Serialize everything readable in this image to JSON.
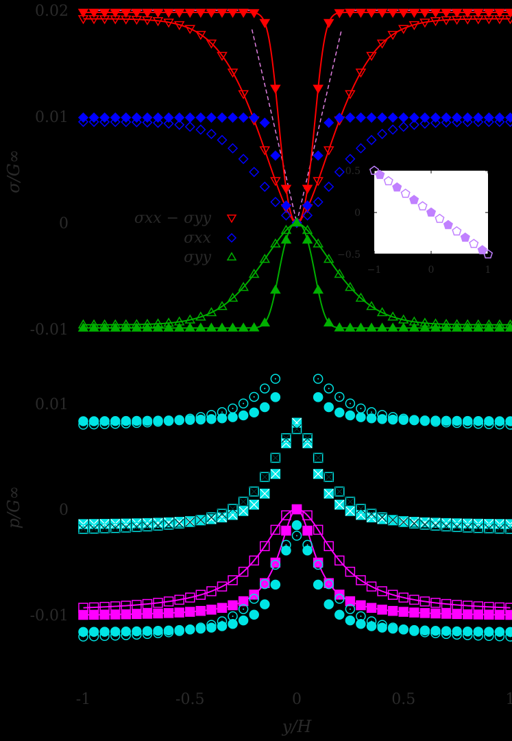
{
  "colors": {
    "background": "#000000",
    "text": "#2a2a2a",
    "red": "#ff0000",
    "blue": "#0000ff",
    "green": "#00b000",
    "cyan": "#00e5e5",
    "magenta": "#ff00ff",
    "violet": "#c080ff",
    "dash": "#e080e0"
  },
  "chart_data": [
    {
      "type": "line",
      "title": "",
      "panel": "top",
      "xlabel": "y/H",
      "ylabel": "σ/G∞",
      "xlim": [
        -1,
        1
      ],
      "ylim": [
        -0.0105,
        0.0205
      ],
      "yticks": [
        "0.02",
        "0.01",
        "0",
        "-0.01"
      ],
      "ytick_values": [
        0.02,
        0.01,
        0,
        -0.01
      ],
      "grid": false,
      "legend": {
        "position": "center-left",
        "entries": [
          {
            "label": "σxx − σyy",
            "marker": "triangle-down-open",
            "color": "#ff0000"
          },
          {
            "label": "σxx",
            "marker": "diamond-open",
            "color": "#0000ff"
          },
          {
            "label": "σyy",
            "marker": "triangle-up-open",
            "color": "#00b000"
          }
        ]
      },
      "series": [
        {
          "name": "σxx − σyy (filled)",
          "color": "#ff0000",
          "marker": "triangle-down-filled",
          "line": true,
          "shape": "plateau",
          "amplitude": 0.0198,
          "width": 0.09
        },
        {
          "name": "σxx − σyy (open)",
          "color": "#ff0000",
          "marker": "triangle-down-open",
          "line": true,
          "shape": "gradual",
          "amplitude": 0.0192,
          "width": 0.25
        },
        {
          "name": "σxx (filled)",
          "color": "#0000ff",
          "marker": "diamond-filled",
          "line": false,
          "shape": "plateau",
          "amplitude": 0.0099,
          "width": 0.09
        },
        {
          "name": "σxx (open)",
          "color": "#0000ff",
          "marker": "diamond-open",
          "line": false,
          "shape": "gradual",
          "amplitude": 0.0095,
          "width": 0.25
        },
        {
          "name": "σyy (filled)",
          "color": "#00b000",
          "marker": "triangle-up-filled",
          "line": true,
          "shape": "plateau",
          "amplitude": -0.0099,
          "width": 0.09
        },
        {
          "name": "σyy (open)",
          "color": "#00b000",
          "marker": "triangle-up-open",
          "line": true,
          "shape": "gradual",
          "amplitude": -0.0096,
          "width": 0.25
        },
        {
          "name": "analytic",
          "color": "#e080e0",
          "style": "dashed",
          "line": true,
          "shape": "step",
          "amplitude": 0.02,
          "width": 0.2
        }
      ]
    },
    {
      "type": "scatter",
      "panel": "bottom",
      "xlabel": "y/H",
      "ylabel": "p/G∞",
      "xlim": [
        -1,
        1
      ],
      "ylim": [
        -0.0135,
        0.0135
      ],
      "yticks": [
        "0.01",
        "0",
        "-0.01"
      ],
      "ytick_values": [
        0.01,
        0,
        -0.01
      ],
      "xticks": [
        "-1",
        "-0.5",
        "0",
        "0.5",
        "1"
      ],
      "xtick_values": [
        -1,
        -0.5,
        0,
        0.5,
        1
      ],
      "grid": false,
      "series": [
        {
          "name": "cyan filled circle (upper)",
          "color": "#00e5e5",
          "marker": "circle-filled",
          "base": 0.0083,
          "peak": 0.0135,
          "width": 0.09
        },
        {
          "name": "cyan open circle (upper)",
          "color": "#00e5e5",
          "marker": "circle-open",
          "base": 0.0078,
          "peak": 0.0135,
          "width": 0.2
        },
        {
          "name": "cyan filled x (middle)",
          "color": "#00e5e5",
          "marker": "x-square-filled",
          "base": -0.0015,
          "peak": 0.0082,
          "width": 0.1
        },
        {
          "name": "cyan open x (middle)",
          "color": "#00e5e5",
          "marker": "x-square-open",
          "base": -0.0021,
          "peak": 0.0076,
          "width": 0.16
        },
        {
          "name": "magenta filled square",
          "color": "#ff00ff",
          "marker": "square-filled",
          "base": -0.0101,
          "peak": 0.0,
          "width": 0.1,
          "line": true
        },
        {
          "name": "magenta open square",
          "color": "#ff00ff",
          "marker": "square-open",
          "base": -0.0097,
          "peak": 0.0,
          "width": 0.2,
          "line": true
        },
        {
          "name": "cyan filled circle (lower)",
          "color": "#00e5e5",
          "marker": "circle-filled",
          "base": -0.0117,
          "peak": -0.0015,
          "width": 0.09
        },
        {
          "name": "cyan open circle (lower)",
          "color": "#00e5e5",
          "marker": "circle-open",
          "base": -0.0123,
          "peak": -0.0025,
          "width": 0.16
        }
      ]
    },
    {
      "type": "scatter",
      "panel": "inset",
      "xlim": [
        -1,
        1
      ],
      "ylim": [
        -0.5,
        0.5
      ],
      "xticks": [
        "−1",
        "0",
        "1"
      ],
      "xtick_values": [
        -1,
        0,
        1
      ],
      "yticks": [
        "0.5",
        "0",
        "−0.5"
      ],
      "ytick_values": [
        0.5,
        0,
        -0.5
      ],
      "background": "#ffffff",
      "series": [
        {
          "name": "violet filled pentagon",
          "color": "#c080ff",
          "marker": "pentagon-filled",
          "x": [
            -0.9,
            -0.6,
            -0.3,
            0.0,
            0.3,
            0.6,
            0.9
          ],
          "y": [
            0.45,
            0.3,
            0.15,
            0.0,
            -0.15,
            -0.3,
            -0.45
          ]
        },
        {
          "name": "violet open pentagon",
          "color": "#c080ff",
          "marker": "pentagon-open",
          "x": [
            -1.0,
            -0.75,
            -0.45,
            -0.15,
            0.15,
            0.45,
            0.75,
            1.0
          ],
          "y": [
            0.5,
            0.375,
            0.225,
            0.075,
            -0.075,
            -0.225,
            -0.375,
            -0.5
          ]
        }
      ]
    }
  ],
  "labels": {
    "top_ylabel": "σ/G∞",
    "bottom_ylabel": "p/G∞",
    "xlabel": "y/H",
    "legend": [
      "σxx − σyy",
      "σxx",
      "σyy"
    ]
  }
}
